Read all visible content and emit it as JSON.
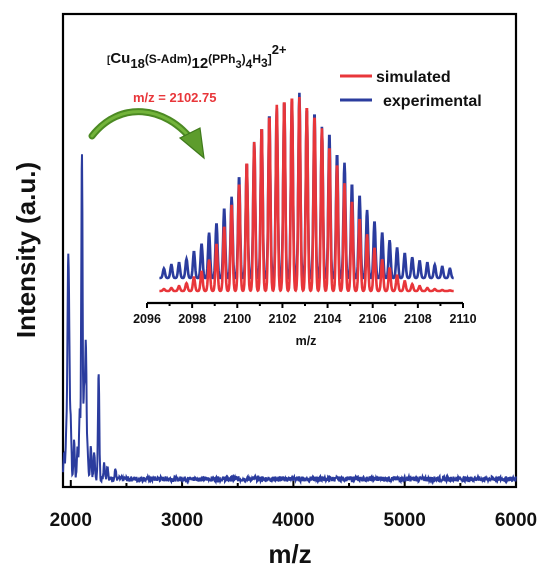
{
  "chart_data": [
    {
      "type": "line",
      "xlabel": "m/z",
      "ylabel": "Intensity (a.u.)",
      "xlim": [
        1930,
        6000
      ],
      "ylim": [
        0,
        1.0
      ],
      "xticks": [
        "2000",
        "3000",
        "4000",
        "5000",
        "6000"
      ],
      "yticks": [],
      "grid": false,
      "series": [
        {
          "color": "#2b3c9e",
          "peaks": [
            {
              "x": 1940,
              "y": 0.08
            },
            {
              "x": 1960,
              "y": 0.14
            },
            {
              "x": 1975,
              "y": 0.53
            },
            {
              "x": 1985,
              "y": 0.38
            },
            {
              "x": 2000,
              "y": 0.16
            },
            {
              "x": 2030,
              "y": 0.11
            },
            {
              "x": 2060,
              "y": 0.09
            },
            {
              "x": 2080,
              "y": 0.2
            },
            {
              "x": 2100,
              "y": 0.97
            },
            {
              "x": 2120,
              "y": 0.26
            },
            {
              "x": 2135,
              "y": 0.4
            },
            {
              "x": 2150,
              "y": 0.08
            },
            {
              "x": 2180,
              "y": 0.1
            },
            {
              "x": 2210,
              "y": 0.08
            },
            {
              "x": 2250,
              "y": 0.31
            },
            {
              "x": 2300,
              "y": 0.05
            },
            {
              "x": 2330,
              "y": 0.04
            },
            {
              "x": 2400,
              "y": 0.03
            }
          ],
          "baseline": 0.015
        }
      ]
    },
    {
      "type": "line",
      "xlabel": "m/z",
      "xlim": [
        2096,
        2110
      ],
      "xticks": [
        "2096",
        "2098",
        "2100",
        "2102",
        "2104",
        "2106",
        "2108",
        "2110"
      ],
      "series": [
        {
          "name": "simulated",
          "color": "#e8363a",
          "x": [
            2096.75,
            2097.08,
            2097.42,
            2097.75,
            2098.08,
            2098.42,
            2098.75,
            2099.08,
            2099.42,
            2099.75,
            2100.08,
            2100.42,
            2100.75,
            2101.08,
            2101.42,
            2101.75,
            2102.08,
            2102.42,
            2102.75,
            2103.08,
            2103.42,
            2103.75,
            2104.08,
            2104.42,
            2104.75,
            2105.08,
            2105.42,
            2105.75,
            2106.08,
            2106.42,
            2106.75,
            2107.08,
            2107.42,
            2107.75,
            2108.08,
            2108.42,
            2108.75,
            2109.08,
            2109.42
          ],
          "y": [
            0.01,
            0.015,
            0.025,
            0.04,
            0.07,
            0.1,
            0.16,
            0.24,
            0.33,
            0.44,
            0.55,
            0.66,
            0.76,
            0.84,
            0.9,
            0.95,
            0.98,
            1.0,
            0.99,
            0.95,
            0.9,
            0.83,
            0.74,
            0.65,
            0.55,
            0.46,
            0.37,
            0.29,
            0.22,
            0.16,
            0.12,
            0.08,
            0.05,
            0.035,
            0.025,
            0.015,
            0.01,
            0.005,
            0.003
          ]
        },
        {
          "name": "experimental",
          "color": "#2b3c9e",
          "x": [
            2096.75,
            2097.08,
            2097.42,
            2097.75,
            2098.08,
            2098.42,
            2098.75,
            2099.08,
            2099.42,
            2099.75,
            2100.08,
            2100.42,
            2100.75,
            2101.08,
            2101.42,
            2101.75,
            2102.08,
            2102.42,
            2102.75,
            2103.08,
            2103.42,
            2103.75,
            2104.08,
            2104.42,
            2104.75,
            2105.08,
            2105.42,
            2105.75,
            2106.08,
            2106.42,
            2106.75,
            2107.08,
            2107.42,
            2107.75,
            2108.08,
            2108.42,
            2108.75,
            2109.08,
            2109.42
          ],
          "y": [
            0.05,
            0.07,
            0.08,
            0.1,
            0.14,
            0.18,
            0.24,
            0.29,
            0.37,
            0.43,
            0.54,
            0.61,
            0.72,
            0.8,
            0.87,
            0.9,
            0.94,
            0.95,
            0.98,
            0.9,
            0.88,
            0.8,
            0.77,
            0.66,
            0.61,
            0.5,
            0.44,
            0.36,
            0.3,
            0.24,
            0.2,
            0.16,
            0.13,
            0.11,
            0.09,
            0.08,
            0.07,
            0.06,
            0.05
          ]
        }
      ],
      "annotations": {
        "formula": {
          "main": "Cu",
          "sub1": "18",
          "mid": "(S-Adm)",
          "sub2": "12",
          "mid2": "(PPh",
          "sub3": "3",
          "mid3": ")",
          "sub4": "4",
          "mid4": "H",
          "sub5": "3",
          "charge": "2+"
        },
        "mz": "m/z = 2102.75"
      }
    }
  ]
}
